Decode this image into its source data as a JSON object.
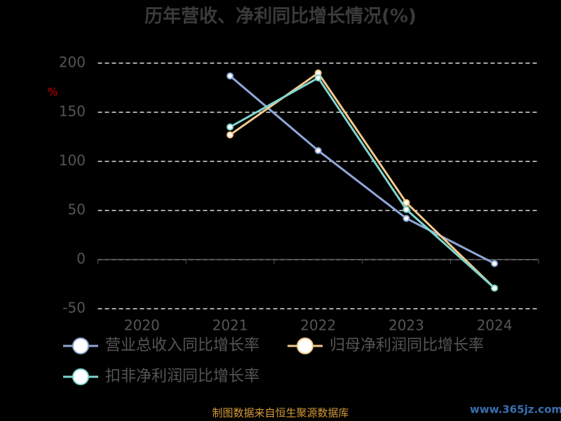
{
  "chart_data": {
    "type": "line",
    "title": "历年营收、净利同比增长情况(%)",
    "y_label": "%",
    "categories": [
      "2020",
      "2021",
      "2022",
      "2023",
      "2024"
    ],
    "series": [
      {
        "name": "营业总收入同比增长率",
        "color": "#8fa8d8",
        "values": [
          null,
          187,
          111,
          42,
          -4
        ]
      },
      {
        "name": "归母净利润同比增长率",
        "color": "#f5c98a",
        "values": [
          null,
          127,
          190,
          58,
          -29
        ]
      },
      {
        "name": "扣非净利润同比增长率",
        "color": "#7fd6cf",
        "values": [
          null,
          135,
          185,
          51,
          -29
        ]
      }
    ],
    "ylim": [
      -50,
      200
    ],
    "yticks": [
      -50,
      0,
      50,
      100,
      150,
      200
    ],
    "grid": true,
    "source": "制图数据来自恒生聚源数据库",
    "watermark": "www.365jz.com"
  }
}
